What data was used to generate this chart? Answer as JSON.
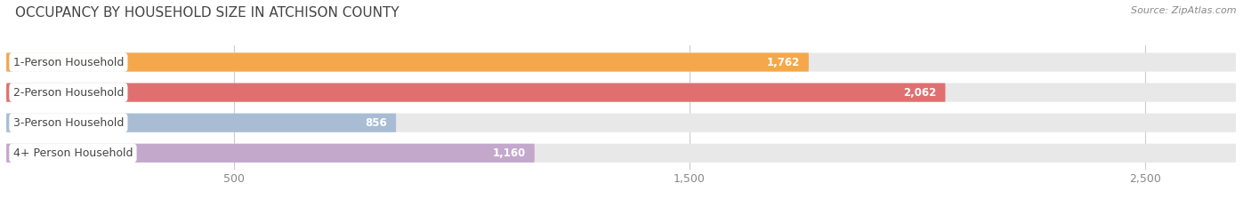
{
  "title": "OCCUPANCY BY HOUSEHOLD SIZE IN ATCHISON COUNTY",
  "source": "Source: ZipAtlas.com",
  "categories": [
    "1-Person Household",
    "2-Person Household",
    "3-Person Household",
    "4+ Person Household"
  ],
  "values": [
    1762,
    2062,
    856,
    1160
  ],
  "bar_colors": [
    "#F5A84B",
    "#E07070",
    "#A8BDD4",
    "#C4A8CC"
  ],
  "xlim_max": 2700,
  "xticks": [
    500,
    1500,
    2500
  ],
  "bar_height": 0.62,
  "figsize": [
    14.06,
    2.33
  ],
  "dpi": 100,
  "background_color": "#ffffff",
  "bar_bg_color": "#e8e8e8",
  "title_fontsize": 11,
  "source_fontsize": 8,
  "label_fontsize": 9,
  "value_fontsize": 8.5,
  "tick_fontsize": 9,
  "label_box_color": "#ffffff",
  "label_text_color": "#444444",
  "value_text_color_inside": "#ffffff",
  "value_text_color_outside": "#666666",
  "grid_color": "#cccccc"
}
